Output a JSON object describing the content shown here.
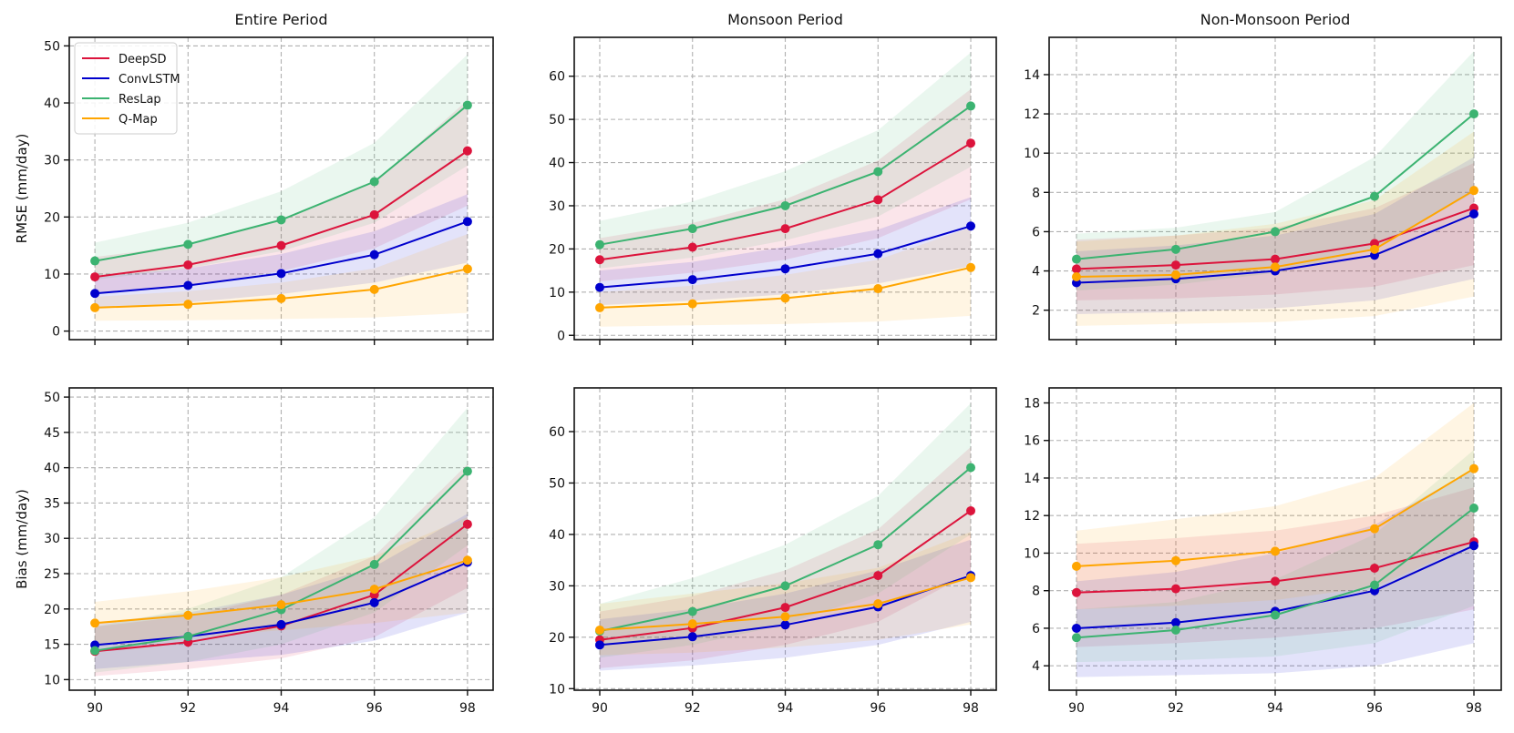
{
  "figure": {
    "legend_position": "upper-left"
  },
  "series_styles": [
    {
      "name": "DeepSD",
      "color": "#dc143c"
    },
    {
      "name": "ConvLSTM",
      "color": "#0000cd"
    },
    {
      "name": "ResLap",
      "color": "#3cb371"
    },
    {
      "name": "Q-Map",
      "color": "#ffa500"
    }
  ],
  "chart_data": [
    {
      "type": "line",
      "title": "Entire Period",
      "xlabel": "",
      "ylabel": "RMSE (mm/day)",
      "x": [
        90,
        92,
        94,
        96,
        98
      ],
      "ylim": [
        -1.5,
        51.5
      ],
      "yticks": [
        0,
        10,
        20,
        30,
        40,
        50
      ],
      "xticks": [
        90,
        92,
        94,
        96,
        98
      ],
      "legend": true,
      "grid": true,
      "series": [
        {
          "name": "DeepSD",
          "values": [
            9.5,
            11.6,
            15.0,
            20.4,
            31.6
          ],
          "lower": [
            6.5,
            8.0,
            10.5,
            14.5,
            22.0
          ],
          "upper": [
            13.0,
            15.0,
            19.5,
            26.0,
            40.5
          ]
        },
        {
          "name": "ConvLSTM",
          "values": [
            6.6,
            8.0,
            10.1,
            13.4,
            19.2
          ],
          "lower": [
            4.0,
            5.0,
            6.5,
            8.5,
            12.0
          ],
          "upper": [
            9.5,
            11.0,
            13.5,
            17.5,
            24.0
          ]
        },
        {
          "name": "ResLap",
          "values": [
            12.3,
            15.2,
            19.5,
            26.2,
            39.6
          ],
          "lower": [
            9.0,
            11.0,
            14.0,
            19.0,
            29.0
          ],
          "upper": [
            15.5,
            19.0,
            24.5,
            33.0,
            48.5
          ]
        },
        {
          "name": "Q-Map",
          "values": [
            4.1,
            4.7,
            5.7,
            7.3,
            10.9
          ],
          "lower": [
            1.8,
            1.9,
            2.1,
            2.4,
            3.2
          ],
          "upper": [
            6.0,
            7.0,
            8.5,
            11.0,
            17.0
          ]
        }
      ]
    },
    {
      "type": "line",
      "title": "Monsoon Period",
      "xlabel": "",
      "ylabel": "",
      "x": [
        90,
        92,
        94,
        96,
        98
      ],
      "ylim": [
        -1,
        69
      ],
      "yticks": [
        0,
        10,
        20,
        30,
        40,
        50,
        60
      ],
      "xticks": [
        90,
        92,
        94,
        96,
        98
      ],
      "legend": false,
      "grid": true,
      "series": [
        {
          "name": "DeepSD",
          "values": [
            17.5,
            20.4,
            24.7,
            31.4,
            44.5
          ],
          "lower": [
            12.5,
            14.5,
            17.5,
            22.5,
            31.5
          ],
          "upper": [
            22.5,
            26.0,
            31.5,
            40.5,
            57.0
          ]
        },
        {
          "name": "ConvLSTM",
          "values": [
            11.1,
            12.9,
            15.4,
            18.9,
            25.3
          ],
          "lower": [
            7.0,
            8.0,
            9.5,
            12.0,
            16.0
          ],
          "upper": [
            15.0,
            17.0,
            20.5,
            24.5,
            32.0
          ]
        },
        {
          "name": "ResLap",
          "values": [
            21.0,
            24.7,
            30.0,
            37.9,
            53.1
          ],
          "lower": [
            15.5,
            18.0,
            22.0,
            27.5,
            39.0
          ],
          "upper": [
            26.5,
            31.0,
            38.0,
            47.5,
            65.5
          ]
        },
        {
          "name": "Q-Map",
          "values": [
            6.4,
            7.3,
            8.6,
            10.8,
            15.7
          ],
          "lower": [
            2.0,
            2.3,
            2.6,
            3.2,
            4.5
          ],
          "upper": [
            10.0,
            11.5,
            14.0,
            17.5,
            25.0
          ]
        }
      ]
    },
    {
      "type": "line",
      "title": "Non-Monsoon Period",
      "xlabel": "",
      "ylabel": "",
      "x": [
        90,
        92,
        94,
        96,
        98
      ],
      "ylim": [
        0.5,
        15.9
      ],
      "yticks": [
        2,
        4,
        6,
        8,
        10,
        12,
        14
      ],
      "xticks": [
        90,
        92,
        94,
        96,
        98
      ],
      "legend": false,
      "grid": true,
      "series": [
        {
          "name": "DeepSD",
          "values": [
            4.1,
            4.3,
            4.6,
            5.4,
            7.2
          ],
          "lower": [
            2.5,
            2.6,
            2.8,
            3.2,
            4.3
          ],
          "upper": [
            5.6,
            5.8,
            6.2,
            7.2,
            9.5
          ]
        },
        {
          "name": "ConvLSTM",
          "values": [
            3.4,
            3.6,
            4.0,
            4.8,
            6.9
          ],
          "lower": [
            1.8,
            1.9,
            2.1,
            2.5,
            3.6
          ],
          "upper": [
            5.0,
            5.3,
            5.8,
            6.9,
            9.8
          ]
        },
        {
          "name": "ResLap",
          "values": [
            4.6,
            5.1,
            6.0,
            7.8,
            12.0
          ],
          "lower": [
            3.0,
            3.3,
            3.9,
            5.1,
            8.0
          ],
          "upper": [
            5.9,
            6.2,
            7.0,
            9.8,
            15.2
          ]
        },
        {
          "name": "Q-Map",
          "values": [
            3.7,
            3.8,
            4.2,
            5.1,
            8.1
          ],
          "lower": [
            1.2,
            1.3,
            1.4,
            1.7,
            2.7
          ],
          "upper": [
            5.5,
            5.8,
            6.4,
            7.6,
            11.1
          ]
        }
      ]
    },
    {
      "type": "line",
      "title": "",
      "xlabel": "",
      "ylabel": "Bias (mm/day)",
      "x": [
        90,
        92,
        94,
        96,
        98
      ],
      "ylim": [
        8.5,
        51.3
      ],
      "yticks": [
        10,
        15,
        20,
        25,
        30,
        35,
        40,
        45,
        50
      ],
      "xticks": [
        90,
        92,
        94,
        96,
        98
      ],
      "legend": false,
      "grid": true,
      "series": [
        {
          "name": "DeepSD",
          "values": [
            14.0,
            15.3,
            17.6,
            22.0,
            32.0
          ],
          "lower": [
            10.5,
            11.5,
            13.0,
            16.0,
            23.0
          ],
          "upper": [
            17.5,
            19.0,
            22.0,
            27.5,
            40.5
          ]
        },
        {
          "name": "ConvLSTM",
          "values": [
            14.9,
            16.1,
            17.8,
            20.9,
            26.6
          ],
          "lower": [
            11.5,
            12.5,
            13.5,
            15.5,
            19.5
          ],
          "upper": [
            18.0,
            19.5,
            22.0,
            26.0,
            33.5
          ]
        },
        {
          "name": "ResLap",
          "values": [
            14.1,
            16.1,
            19.9,
            26.3,
            39.5
          ],
          "lower": [
            11.0,
            12.5,
            15.0,
            19.5,
            29.0
          ],
          "upper": [
            17.5,
            20.0,
            24.5,
            33.0,
            48.5
          ]
        },
        {
          "name": "Q-Map",
          "values": [
            18.0,
            19.1,
            20.6,
            22.8,
            26.9
          ],
          "lower": [
            15.0,
            16.0,
            17.0,
            18.0,
            19.5
          ],
          "upper": [
            21.0,
            22.5,
            24.5,
            27.5,
            33.0
          ]
        }
      ]
    },
    {
      "type": "line",
      "title": "",
      "xlabel": "",
      "ylabel": "",
      "x": [
        90,
        92,
        94,
        96,
        98
      ],
      "ylim": [
        9.7,
        68.5
      ],
      "yticks": [
        10,
        20,
        30,
        40,
        50,
        60
      ],
      "xticks": [
        90,
        92,
        94,
        96,
        98
      ],
      "legend": false,
      "grid": true,
      "series": [
        {
          "name": "DeepSD",
          "values": [
            19.5,
            21.8,
            25.8,
            32.0,
            44.6
          ],
          "lower": [
            14.0,
            15.5,
            18.5,
            23.0,
            32.5
          ],
          "upper": [
            25.0,
            28.0,
            33.0,
            41.0,
            57.0
          ]
        },
        {
          "name": "ConvLSTM",
          "values": [
            18.5,
            20.1,
            22.4,
            25.9,
            32.0
          ],
          "lower": [
            13.5,
            14.5,
            16.0,
            18.5,
            23.0
          ],
          "upper": [
            23.5,
            25.5,
            28.5,
            33.0,
            39.0
          ]
        },
        {
          "name": "ResLap",
          "values": [
            21.2,
            25.0,
            30.0,
            38.0,
            53.0
          ],
          "lower": [
            16.0,
            18.5,
            22.5,
            28.5,
            40.0
          ],
          "upper": [
            26.5,
            31.5,
            38.0,
            47.5,
            65.5
          ]
        },
        {
          "name": "Q-Map",
          "values": [
            21.4,
            22.6,
            24.0,
            26.5,
            31.6
          ],
          "lower": [
            16.5,
            17.0,
            18.0,
            19.5,
            22.5
          ],
          "upper": [
            26.5,
            28.5,
            30.5,
            33.5,
            40.5
          ]
        }
      ]
    },
    {
      "type": "line",
      "title": "",
      "xlabel": "",
      "ylabel": "",
      "x": [
        90,
        92,
        94,
        96,
        98
      ],
      "ylim": [
        2.7,
        18.8
      ],
      "yticks": [
        4,
        6,
        8,
        10,
        12,
        14,
        16,
        18
      ],
      "xticks": [
        90,
        92,
        94,
        96,
        98
      ],
      "legend": false,
      "grid": true,
      "series": [
        {
          "name": "DeepSD",
          "values": [
            7.9,
            8.1,
            8.5,
            9.2,
            10.6
          ],
          "lower": [
            5.0,
            5.2,
            5.5,
            6.0,
            7.0
          ],
          "upper": [
            10.5,
            10.8,
            11.2,
            12.0,
            13.5
          ]
        },
        {
          "name": "ConvLSTM",
          "values": [
            6.0,
            6.3,
            6.9,
            8.0,
            10.4
          ],
          "lower": [
            3.4,
            3.5,
            3.6,
            4.0,
            5.2
          ],
          "upper": [
            8.5,
            9.0,
            10.0,
            11.5,
            14.5
          ]
        },
        {
          "name": "ResLap",
          "values": [
            5.5,
            5.9,
            6.7,
            8.3,
            12.4
          ],
          "lower": [
            4.2,
            4.3,
            4.5,
            5.2,
            7.2
          ],
          "upper": [
            7.0,
            7.4,
            8.6,
            11.0,
            15.5
          ]
        },
        {
          "name": "Q-Map",
          "values": [
            9.3,
            9.6,
            10.1,
            11.3,
            14.5
          ],
          "lower": [
            7.0,
            7.2,
            7.5,
            8.2,
            10.5
          ],
          "upper": [
            11.2,
            11.8,
            12.5,
            14.0,
            18.0
          ]
        }
      ]
    }
  ]
}
